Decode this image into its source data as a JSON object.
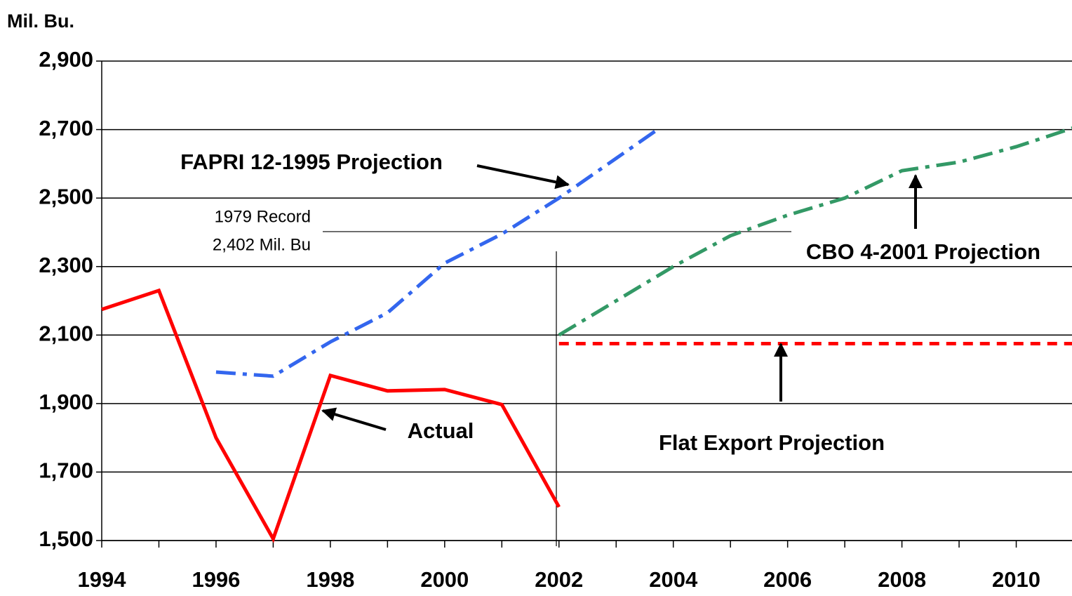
{
  "chart_data": {
    "type": "line",
    "y_label": "Mil. Bu.",
    "xlim": [
      1994,
      2011
    ],
    "xticks": [
      1994,
      1996,
      1998,
      2000,
      2002,
      2004,
      2006,
      2008,
      2010
    ],
    "xminorticks": [
      1995,
      1997,
      1999,
      2001,
      2003,
      2005,
      2007,
      2009
    ],
    "ylim": [
      1500,
      2900
    ],
    "yticks": [
      {
        "value": 1500,
        "label": "1,500"
      },
      {
        "value": 1700,
        "label": "1,700"
      },
      {
        "value": 1900,
        "label": "1,900"
      },
      {
        "value": 2100,
        "label": "2,100"
      },
      {
        "value": 2300,
        "label": "2,300"
      },
      {
        "value": 2500,
        "label": "2,500"
      },
      {
        "value": 2700,
        "label": "2,700"
      },
      {
        "value": 2900,
        "label": "2,900"
      }
    ],
    "grid": true,
    "series": [
      {
        "name": "Actual",
        "color": "#ff0000",
        "dash": "solid",
        "x": [
          1994,
          1995,
          1996,
          1997,
          1998,
          1999,
          2000,
          2001,
          2002
        ],
        "values": [
          2175,
          2230,
          1800,
          1505,
          1982,
          1937,
          1941,
          1897,
          1598
        ]
      },
      {
        "name": "FAPRI 12-1995 Projection",
        "color": "#3366ee",
        "dash": "dashdot",
        "x": [
          1996,
          1997,
          1998,
          1999,
          2000,
          2001,
          2002,
          2003,
          2003.75
        ],
        "values": [
          1992,
          1980,
          2080,
          2165,
          2310,
          2395,
          2500,
          2616,
          2703
        ]
      },
      {
        "name": "CBO 4-2001 Projection",
        "color": "#339966",
        "dash": "dashdot",
        "x": [
          2002,
          2003,
          2004,
          2005,
          2006,
          2007,
          2008,
          2009,
          2010,
          2011
        ],
        "values": [
          2100,
          2200,
          2300,
          2390,
          2450,
          2500,
          2580,
          2605,
          2650,
          2705
        ]
      },
      {
        "name": "Flat Export Projection",
        "color": "#ff0000",
        "dash": "dashed",
        "x": [
          2002,
          2011
        ],
        "values": [
          2075,
          2075
        ]
      }
    ],
    "record_label": [
      "1979 Record",
      "2,402 Mil. Bu"
    ],
    "record_value": 2402
  }
}
